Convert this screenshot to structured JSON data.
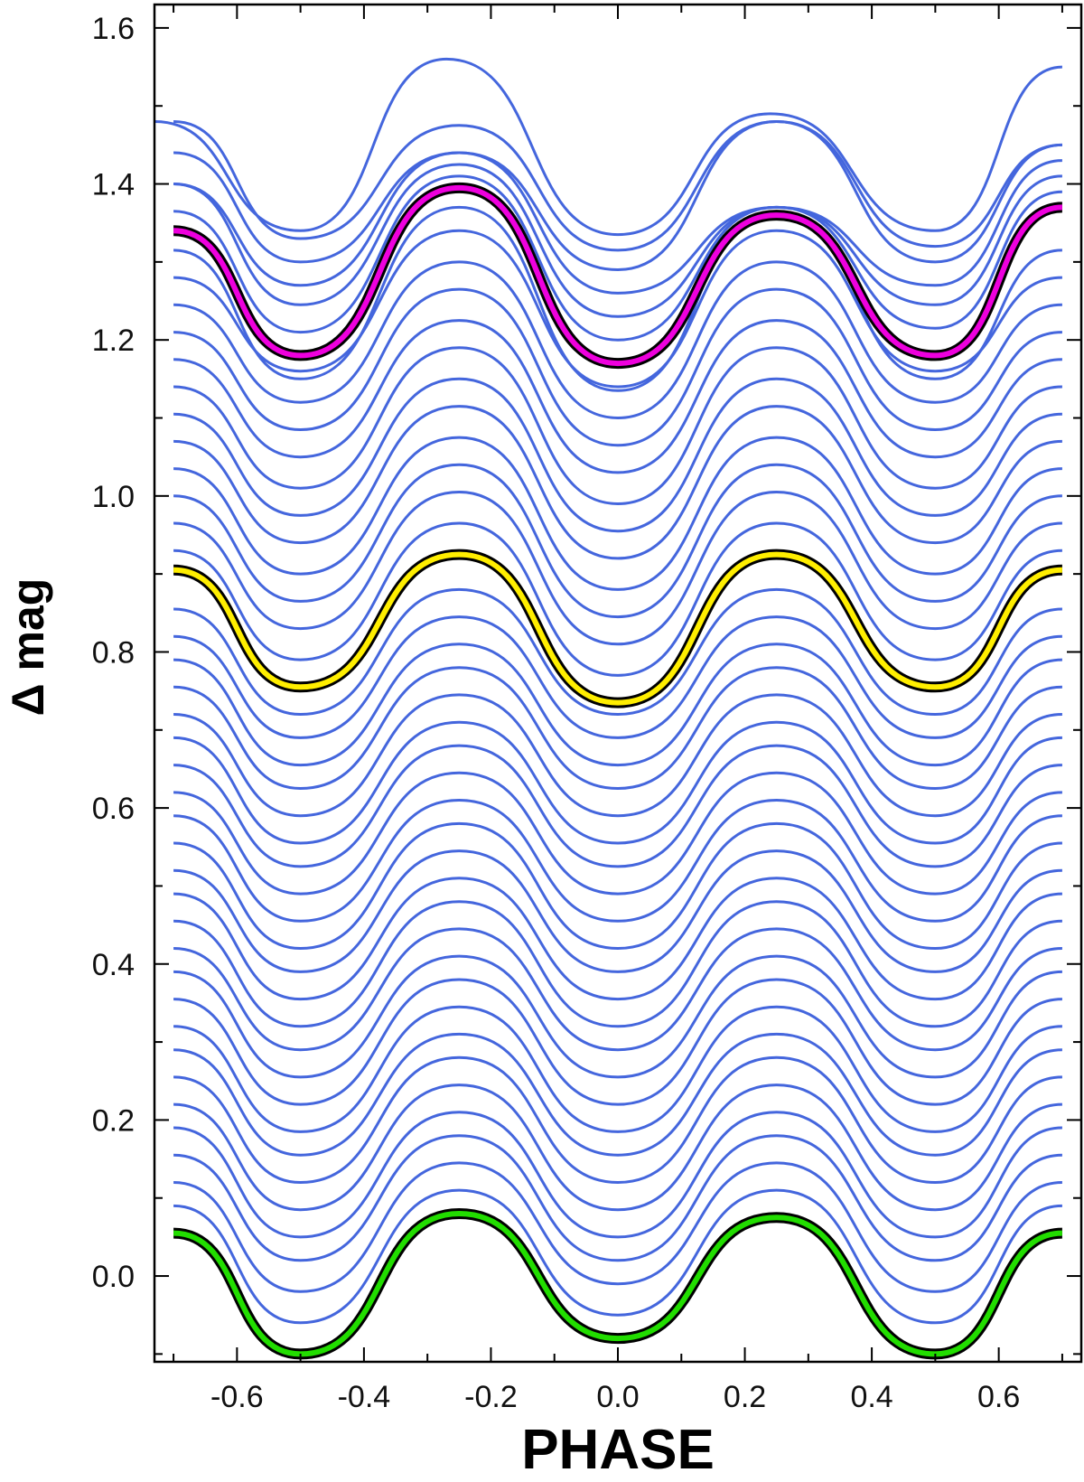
{
  "chart_data": {
    "type": "line",
    "title": "",
    "xlabel": "PHASE",
    "ylabel": "Δ mag",
    "xlim": [
      -0.73,
      0.73
    ],
    "ylim": [
      -0.11,
      1.63
    ],
    "x_ticks": [
      -0.6,
      -0.4,
      -0.2,
      0.0,
      0.2,
      0.4,
      0.6
    ],
    "x_tick_labels": [
      "-0.6",
      "-0.4",
      "-0.2",
      "0.0",
      "0.2",
      "0.4",
      "0.6"
    ],
    "y_ticks": [
      0.0,
      0.2,
      0.4,
      0.6,
      0.8,
      1.0,
      1.2,
      1.4,
      1.6
    ],
    "y_tick_labels": [
      "0.0",
      "0.2",
      "0.4",
      "0.6",
      "0.8",
      "1.0",
      "1.2",
      "1.4",
      "1.6"
    ],
    "x_range": [
      -0.7,
      0.7
    ],
    "grid": false,
    "colors": {
      "model_curve": "#4466dd",
      "highlight_top": "#ee00dd",
      "highlight_middle": "#ffee00",
      "highlight_bottom": "#22dd00",
      "outline": "#000000"
    },
    "series": [
      {
        "role": "highlight_bottom",
        "phase": [
          -0.7,
          -0.5,
          -0.25,
          0.0,
          0.25,
          0.5,
          0.7
        ],
        "dmag": [
          0.055,
          -0.1,
          0.08,
          -0.08,
          0.075,
          -0.1,
          0.055
        ]
      },
      {
        "role": "model_curve",
        "phase": [
          -0.7,
          -0.5,
          -0.25,
          0.0,
          0.25,
          0.5,
          0.7
        ],
        "dmag": [
          0.09,
          -0.06,
          0.11,
          -0.05,
          0.11,
          -0.06,
          0.09
        ]
      },
      {
        "role": "model_curve",
        "phase": [
          -0.7,
          -0.5,
          -0.25,
          0.0,
          0.25,
          0.5,
          0.7
        ],
        "dmag": [
          0.12,
          -0.02,
          0.145,
          -0.01,
          0.145,
          -0.02,
          0.12
        ]
      },
      {
        "role": "model_curve",
        "phase": [
          -0.7,
          -0.5,
          -0.25,
          0.0,
          0.25,
          0.5,
          0.7
        ],
        "dmag": [
          0.155,
          0.02,
          0.18,
          0.02,
          0.18,
          0.02,
          0.155
        ]
      },
      {
        "role": "model_curve",
        "phase": [
          -0.7,
          -0.5,
          -0.25,
          0.0,
          0.25,
          0.5,
          0.7
        ],
        "dmag": [
          0.19,
          0.05,
          0.21,
          0.05,
          0.21,
          0.05,
          0.19
        ]
      },
      {
        "role": "model_curve",
        "phase": [
          -0.7,
          -0.5,
          -0.25,
          0.0,
          0.25,
          0.5,
          0.7
        ],
        "dmag": [
          0.22,
          0.085,
          0.245,
          0.085,
          0.245,
          0.085,
          0.22
        ]
      },
      {
        "role": "model_curve",
        "phase": [
          -0.7,
          -0.5,
          -0.25,
          0.0,
          0.25,
          0.5,
          0.7
        ],
        "dmag": [
          0.255,
          0.12,
          0.28,
          0.12,
          0.28,
          0.12,
          0.255
        ]
      },
      {
        "role": "model_curve",
        "phase": [
          -0.7,
          -0.5,
          -0.25,
          0.0,
          0.25,
          0.5,
          0.7
        ],
        "dmag": [
          0.29,
          0.155,
          0.31,
          0.155,
          0.31,
          0.155,
          0.29
        ]
      },
      {
        "role": "model_curve",
        "phase": [
          -0.7,
          -0.5,
          -0.25,
          0.0,
          0.25,
          0.5,
          0.7
        ],
        "dmag": [
          0.32,
          0.185,
          0.345,
          0.185,
          0.345,
          0.185,
          0.32
        ]
      },
      {
        "role": "model_curve",
        "phase": [
          -0.7,
          -0.5,
          -0.25,
          0.0,
          0.25,
          0.5,
          0.7
        ],
        "dmag": [
          0.355,
          0.22,
          0.38,
          0.22,
          0.38,
          0.22,
          0.355
        ]
      },
      {
        "role": "model_curve",
        "phase": [
          -0.7,
          -0.5,
          -0.25,
          0.0,
          0.25,
          0.5,
          0.7
        ],
        "dmag": [
          0.39,
          0.255,
          0.41,
          0.255,
          0.41,
          0.255,
          0.39
        ]
      },
      {
        "role": "model_curve",
        "phase": [
          -0.7,
          -0.5,
          -0.25,
          0.0,
          0.25,
          0.5,
          0.7
        ],
        "dmag": [
          0.42,
          0.29,
          0.445,
          0.29,
          0.445,
          0.29,
          0.42
        ]
      },
      {
        "role": "model_curve",
        "phase": [
          -0.7,
          -0.5,
          -0.25,
          0.0,
          0.25,
          0.5,
          0.7
        ],
        "dmag": [
          0.455,
          0.32,
          0.48,
          0.32,
          0.48,
          0.32,
          0.455
        ]
      },
      {
        "role": "model_curve",
        "phase": [
          -0.7,
          -0.5,
          -0.25,
          0.0,
          0.25,
          0.5,
          0.7
        ],
        "dmag": [
          0.49,
          0.355,
          0.51,
          0.355,
          0.51,
          0.355,
          0.49
        ]
      },
      {
        "role": "model_curve",
        "phase": [
          -0.7,
          -0.5,
          -0.25,
          0.0,
          0.25,
          0.5,
          0.7
        ],
        "dmag": [
          0.52,
          0.39,
          0.545,
          0.39,
          0.545,
          0.39,
          0.52
        ]
      },
      {
        "role": "model_curve",
        "phase": [
          -0.7,
          -0.5,
          -0.25,
          0.0,
          0.25,
          0.5,
          0.7
        ],
        "dmag": [
          0.555,
          0.42,
          0.58,
          0.42,
          0.58,
          0.42,
          0.555
        ]
      },
      {
        "role": "model_curve",
        "phase": [
          -0.7,
          -0.5,
          -0.25,
          0.0,
          0.25,
          0.5,
          0.7
        ],
        "dmag": [
          0.59,
          0.455,
          0.61,
          0.455,
          0.61,
          0.455,
          0.59
        ]
      },
      {
        "role": "model_curve",
        "phase": [
          -0.7,
          -0.5,
          -0.25,
          0.0,
          0.25,
          0.5,
          0.7
        ],
        "dmag": [
          0.62,
          0.49,
          0.645,
          0.49,
          0.645,
          0.49,
          0.62
        ]
      },
      {
        "role": "model_curve",
        "phase": [
          -0.7,
          -0.5,
          -0.25,
          0.0,
          0.25,
          0.5,
          0.7
        ],
        "dmag": [
          0.655,
          0.525,
          0.68,
          0.525,
          0.68,
          0.525,
          0.655
        ]
      },
      {
        "role": "model_curve",
        "phase": [
          -0.7,
          -0.5,
          -0.25,
          0.0,
          0.25,
          0.5,
          0.7
        ],
        "dmag": [
          0.69,
          0.555,
          0.71,
          0.555,
          0.71,
          0.555,
          0.69
        ]
      },
      {
        "role": "model_curve",
        "phase": [
          -0.7,
          -0.5,
          -0.25,
          0.0,
          0.25,
          0.5,
          0.7
        ],
        "dmag": [
          0.72,
          0.59,
          0.745,
          0.59,
          0.745,
          0.59,
          0.72
        ]
      },
      {
        "role": "model_curve",
        "phase": [
          -0.7,
          -0.5,
          -0.25,
          0.0,
          0.25,
          0.5,
          0.7
        ],
        "dmag": [
          0.755,
          0.625,
          0.78,
          0.625,
          0.78,
          0.625,
          0.755
        ]
      },
      {
        "role": "model_curve",
        "phase": [
          -0.7,
          -0.5,
          -0.25,
          0.0,
          0.25,
          0.5,
          0.7
        ],
        "dmag": [
          0.79,
          0.655,
          0.81,
          0.655,
          0.81,
          0.655,
          0.79
        ]
      },
      {
        "role": "model_curve",
        "phase": [
          -0.7,
          -0.5,
          -0.25,
          0.0,
          0.25,
          0.5,
          0.7
        ],
        "dmag": [
          0.82,
          0.69,
          0.845,
          0.69,
          0.845,
          0.69,
          0.82
        ]
      },
      {
        "role": "model_curve",
        "phase": [
          -0.7,
          -0.5,
          -0.25,
          0.0,
          0.25,
          0.5,
          0.7
        ],
        "dmag": [
          0.855,
          0.72,
          0.88,
          0.72,
          0.88,
          0.72,
          0.855
        ]
      },
      {
        "role": "highlight_middle",
        "phase": [
          -0.7,
          -0.5,
          -0.25,
          0.0,
          0.25,
          0.5,
          0.7
        ],
        "dmag": [
          0.905,
          0.755,
          0.925,
          0.735,
          0.925,
          0.755,
          0.905
        ]
      },
      {
        "role": "model_curve",
        "phase": [
          -0.7,
          -0.5,
          -0.25,
          0.0,
          0.25,
          0.5,
          0.7
        ],
        "dmag": [
          0.93,
          0.79,
          0.965,
          0.77,
          0.965,
          0.79,
          0.93
        ]
      },
      {
        "role": "model_curve",
        "phase": [
          -0.7,
          -0.5,
          -0.25,
          0.0,
          0.25,
          0.5,
          0.7
        ],
        "dmag": [
          0.965,
          0.83,
          1.005,
          0.81,
          1.005,
          0.83,
          0.965
        ]
      },
      {
        "role": "model_curve",
        "phase": [
          -0.7,
          -0.5,
          -0.25,
          0.0,
          0.25,
          0.5,
          0.7
        ],
        "dmag": [
          1.0,
          0.865,
          1.04,
          0.845,
          1.04,
          0.865,
          1.0
        ]
      },
      {
        "role": "model_curve",
        "phase": [
          -0.7,
          -0.5,
          -0.25,
          0.0,
          0.25,
          0.5,
          0.7
        ],
        "dmag": [
          1.035,
          0.9,
          1.075,
          0.88,
          1.075,
          0.9,
          1.035
        ]
      },
      {
        "role": "model_curve",
        "phase": [
          -0.7,
          -0.5,
          -0.25,
          0.0,
          0.25,
          0.5,
          0.7
        ],
        "dmag": [
          1.07,
          0.94,
          1.115,
          0.92,
          1.115,
          0.94,
          1.07
        ]
      },
      {
        "role": "model_curve",
        "phase": [
          -0.7,
          -0.5,
          -0.25,
          0.0,
          0.25,
          0.5,
          0.7
        ],
        "dmag": [
          1.105,
          0.975,
          1.15,
          0.955,
          1.15,
          0.975,
          1.105
        ]
      },
      {
        "role": "model_curve",
        "phase": [
          -0.7,
          -0.5,
          -0.25,
          0.0,
          0.25,
          0.5,
          0.7
        ],
        "dmag": [
          1.14,
          1.01,
          1.19,
          0.99,
          1.19,
          1.01,
          1.14
        ]
      },
      {
        "role": "model_curve",
        "phase": [
          -0.7,
          -0.5,
          -0.25,
          0.0,
          0.25,
          0.5,
          0.7
        ],
        "dmag": [
          1.175,
          1.05,
          1.225,
          1.03,
          1.225,
          1.05,
          1.175
        ]
      },
      {
        "role": "model_curve",
        "phase": [
          -0.7,
          -0.5,
          -0.25,
          0.0,
          0.25,
          0.5,
          0.7
        ],
        "dmag": [
          1.21,
          1.085,
          1.265,
          1.065,
          1.265,
          1.085,
          1.21
        ]
      },
      {
        "role": "model_curve",
        "phase": [
          -0.7,
          -0.5,
          -0.25,
          0.0,
          0.25,
          0.5,
          0.7
        ],
        "dmag": [
          1.245,
          1.12,
          1.3,
          1.1,
          1.3,
          1.12,
          1.245
        ]
      },
      {
        "role": "model_curve",
        "phase": [
          -0.7,
          -0.5,
          -0.25,
          0.0,
          0.25,
          0.5,
          0.7
        ],
        "dmag": [
          1.28,
          1.16,
          1.34,
          1.14,
          1.34,
          1.16,
          1.28
        ]
      },
      {
        "role": "model_curve",
        "phase": [
          -0.7,
          -0.5,
          -0.25,
          0.0,
          0.25,
          0.5,
          0.7
        ],
        "dmag": [
          1.315,
          1.15,
          1.37,
          1.135,
          1.365,
          1.15,
          1.315
        ]
      },
      {
        "role": "highlight_top",
        "phase": [
          -0.7,
          -0.5,
          -0.25,
          0.0,
          0.25,
          0.5,
          0.7
        ],
        "dmag": [
          1.34,
          1.18,
          1.395,
          1.17,
          1.36,
          1.18,
          1.37
        ]
      },
      {
        "role": "model_curve",
        "phase": [
          -0.7,
          -0.5,
          -0.25,
          0.0,
          0.25,
          0.5,
          0.7
        ],
        "dmag": [
          1.365,
          1.21,
          1.41,
          1.2,
          1.37,
          1.215,
          1.39
        ]
      },
      {
        "role": "model_curve",
        "phase": [
          -0.7,
          -0.5,
          -0.25,
          0.0,
          0.25,
          0.5,
          0.7
        ],
        "dmag": [
          1.4,
          1.245,
          1.425,
          1.23,
          1.37,
          1.245,
          1.41
        ]
      },
      {
        "role": "model_curve",
        "phase": [
          -0.7,
          -0.5,
          -0.25,
          0.0,
          0.25,
          0.5,
          0.7
        ],
        "dmag": [
          1.4,
          1.27,
          1.44,
          1.26,
          1.37,
          1.27,
          1.43
        ]
      },
      {
        "role": "model_curve",
        "phase": [
          -0.7,
          -0.5,
          -0.25,
          0.0,
          0.25,
          0.5,
          0.7
        ],
        "dmag": [
          1.44,
          1.3,
          1.44,
          1.29,
          1.48,
          1.3,
          1.45
        ]
      },
      {
        "role": "model_curve",
        "phase": [
          -0.7,
          -0.5,
          -0.25,
          0.0,
          0.25,
          0.5,
          0.7
        ],
        "dmag": [
          1.48,
          1.33,
          1.475,
          1.315,
          1.48,
          1.32,
          1.45
        ]
      },
      {
        "role": "model_curve",
        "phase": [
          -0.73,
          -0.5,
          -0.27,
          0.0,
          0.24,
          0.5,
          0.7
        ],
        "dmag": [
          1.48,
          1.34,
          1.56,
          1.335,
          1.49,
          1.34,
          1.55
        ]
      }
    ]
  }
}
